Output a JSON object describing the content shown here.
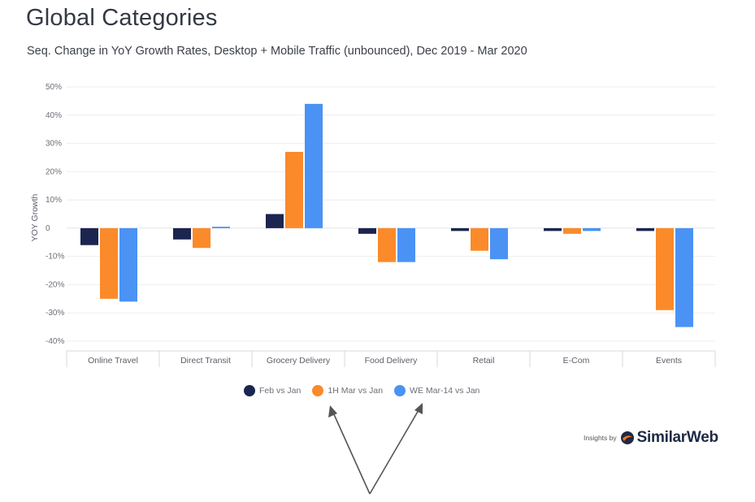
{
  "header": {
    "title": "Global Categories",
    "subtitle": "Seq. Change in YoY Growth Rates, Desktop + Mobile Traffic (unbounced), Dec 2019 - Mar 2020"
  },
  "branding": {
    "prefix": "Insights by",
    "name": "SimilarWeb"
  },
  "colors": {
    "series": [
      "#1b2550",
      "#fb8a2a",
      "#4a92f4"
    ],
    "grid": "#eeeeee",
    "arrow": "#555555"
  },
  "chart_data": {
    "type": "bar",
    "title": "Global Categories",
    "subtitle": "Seq. Change in YoY Growth Rates, Desktop + Mobile Traffic (unbounced), Dec 2019 - Mar 2020",
    "xlabel": "",
    "ylabel": "YOY Growth",
    "ylim": [
      -40,
      50
    ],
    "yticks": [
      50,
      40,
      30,
      20,
      10,
      0,
      -10,
      -20,
      -30,
      -40
    ],
    "ytick_labels": [
      "50%",
      "40%",
      "30%",
      "20%",
      "10%",
      "0",
      "-10%",
      "-20%",
      "-30%",
      "-40%"
    ],
    "grid": true,
    "legend_position": "bottom",
    "categories": [
      "Online Travel",
      "Direct Transit",
      "Grocery Delivery",
      "Food Delivery",
      "Retail",
      "E-Com",
      "Events"
    ],
    "series": [
      {
        "name": "Feb vs Jan",
        "values": [
          -6,
          -4,
          5,
          -2,
          -1,
          -1,
          -1
        ]
      },
      {
        "name": "1H Mar vs Jan",
        "values": [
          -25,
          -7,
          27,
          -12,
          -8,
          -2,
          -29
        ]
      },
      {
        "name": "WE Mar-14 vs Jan",
        "values": [
          -26,
          0.5,
          44,
          -12,
          -11,
          -1,
          -35
        ]
      }
    ]
  }
}
